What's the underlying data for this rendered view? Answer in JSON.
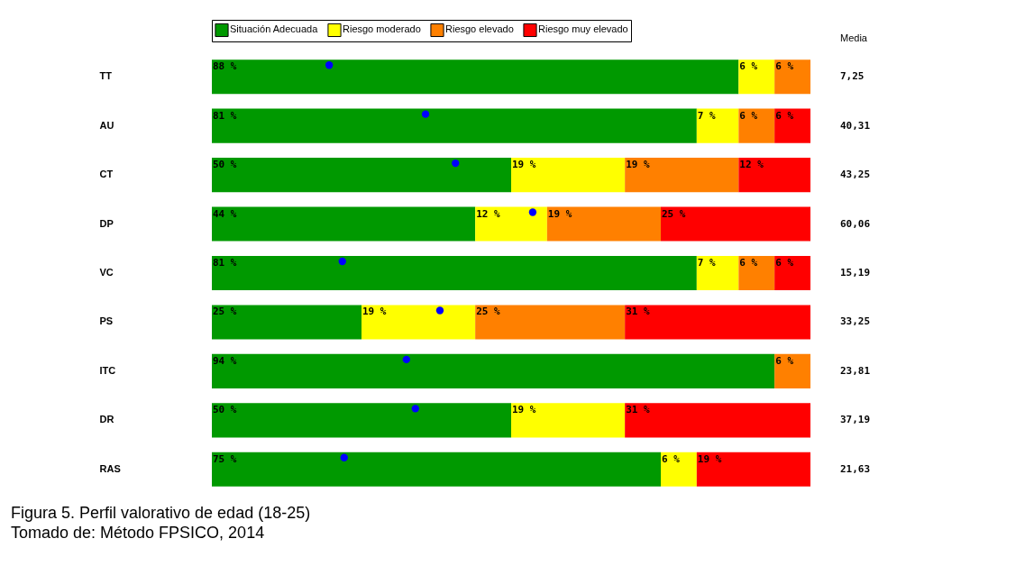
{
  "chart_data": {
    "type": "bar",
    "orientation": "horizontal",
    "stacked": true,
    "legend": "top",
    "categories": [
      "TT",
      "AU",
      "CT",
      "DP",
      "VC",
      "PS",
      "ITC",
      "DR",
      "RAS"
    ],
    "series": [
      {
        "name": "Situación Adecuada",
        "color": "#009900",
        "values": [
          88,
          81,
          50,
          44,
          81,
          25,
          94,
          50,
          75
        ],
        "value_labels": [
          "88 %",
          "81 %",
          "50 %",
          "44 %",
          "81 %",
          "25 %",
          "94 %",
          "50 %",
          "75 %"
        ]
      },
      {
        "name": "Riesgo moderado",
        "color": "#ffff00",
        "values": [
          6,
          7,
          19,
          12,
          7,
          19,
          null,
          19,
          6
        ],
        "value_labels": [
          "6 %",
          "7 %",
          "19 %",
          "12 %",
          "7 %",
          "19 %",
          null,
          "19 %",
          "6 %"
        ]
      },
      {
        "name": "Riesgo elevado",
        "color": "#ff8000",
        "values": [
          6,
          6,
          19,
          19,
          6,
          25,
          6,
          null,
          null
        ],
        "value_labels": [
          "6 %",
          "6 %",
          "19 %",
          "19 %",
          "6 %",
          "25 %",
          "6 %",
          null,
          null
        ]
      },
      {
        "name": "Riesgo muy elevado",
        "color": "#ff0000",
        "values": [
          null,
          6,
          12,
          25,
          6,
          31,
          null,
          31,
          19
        ],
        "value_labels": [
          null,
          "6 %",
          "12 %",
          "25 %",
          "6 %",
          "31 %",
          null,
          "31 %",
          "19 %"
        ]
      },
      {
        "type": "scatter",
        "color": "#0000ff",
        "marker": "circle",
        "values": [
          19.6,
          35.7,
          40.7,
          53.6,
          21.8,
          38.1,
          32.5,
          34.0,
          22.1
        ]
      }
    ],
    "annotations": [
      "Media",
      "7,25",
      "40,31",
      "43,25",
      "60,06",
      "15,19",
      "33,25",
      "23,81",
      "37,19",
      "21,63",
      "Figura 5. Perfil valorativo de edad (18-25)",
      "Tomado de: Método FPSICO, 2014"
    ]
  }
}
